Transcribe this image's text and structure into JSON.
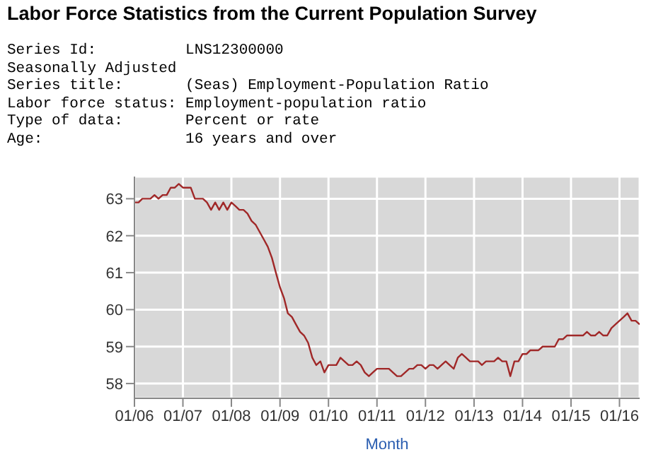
{
  "chart_data": {
    "type": "line",
    "title": "Labor Force Statistics from the Current Population Survey",
    "annotations": [
      "Series Id:          LNS12300000",
      "Seasonally Adjusted",
      "Series title:       (Seas) Employment-Population Ratio",
      "Labor force status: Employment-population ratio",
      "Type of data:       Percent or rate",
      "Age:                16 years and over"
    ],
    "xlabel": "Month",
    "x": [
      "2006-01",
      "2006-02",
      "2006-03",
      "2006-04",
      "2006-05",
      "2006-06",
      "2006-07",
      "2006-08",
      "2006-09",
      "2006-10",
      "2006-11",
      "2006-12",
      "2007-01",
      "2007-02",
      "2007-03",
      "2007-04",
      "2007-05",
      "2007-06",
      "2007-07",
      "2007-08",
      "2007-09",
      "2007-10",
      "2007-11",
      "2007-12",
      "2008-01",
      "2008-02",
      "2008-03",
      "2008-04",
      "2008-05",
      "2008-06",
      "2008-07",
      "2008-08",
      "2008-09",
      "2008-10",
      "2008-11",
      "2008-12",
      "2009-01",
      "2009-02",
      "2009-03",
      "2009-04",
      "2009-05",
      "2009-06",
      "2009-07",
      "2009-08",
      "2009-09",
      "2009-10",
      "2009-11",
      "2009-12",
      "2010-01",
      "2010-02",
      "2010-03",
      "2010-04",
      "2010-05",
      "2010-06",
      "2010-07",
      "2010-08",
      "2010-09",
      "2010-10",
      "2010-11",
      "2010-12",
      "2011-01",
      "2011-02",
      "2011-03",
      "2011-04",
      "2011-05",
      "2011-06",
      "2011-07",
      "2011-08",
      "2011-09",
      "2011-10",
      "2011-11",
      "2011-12",
      "2012-01",
      "2012-02",
      "2012-03",
      "2012-04",
      "2012-05",
      "2012-06",
      "2012-07",
      "2012-08",
      "2012-09",
      "2012-10",
      "2012-11",
      "2012-12",
      "2013-01",
      "2013-02",
      "2013-03",
      "2013-04",
      "2013-05",
      "2013-06",
      "2013-07",
      "2013-08",
      "2013-09",
      "2013-10",
      "2013-11",
      "2013-12",
      "2014-01",
      "2014-02",
      "2014-03",
      "2014-04",
      "2014-05",
      "2014-06",
      "2014-07",
      "2014-08",
      "2014-09",
      "2014-10",
      "2014-11",
      "2014-12",
      "2015-01",
      "2015-02",
      "2015-03",
      "2015-04",
      "2015-05",
      "2015-06",
      "2015-07",
      "2015-08",
      "2015-09",
      "2015-10",
      "2015-11",
      "2015-12",
      "2016-01",
      "2016-02",
      "2016-03",
      "2016-04",
      "2016-05",
      "2016-06"
    ],
    "series": [
      {
        "color": "#a02828",
        "values": [
          62.9,
          62.9,
          63.0,
          63.0,
          63.0,
          63.1,
          63.0,
          63.1,
          63.1,
          63.3,
          63.3,
          63.4,
          63.3,
          63.3,
          63.3,
          63.0,
          63.0,
          63.0,
          62.9,
          62.7,
          62.9,
          62.7,
          62.9,
          62.7,
          62.9,
          62.8,
          62.7,
          62.7,
          62.6,
          62.4,
          62.3,
          62.1,
          61.9,
          61.7,
          61.4,
          61.0,
          60.6,
          60.3,
          59.9,
          59.8,
          59.6,
          59.4,
          59.3,
          59.1,
          58.7,
          58.5,
          58.6,
          58.3,
          58.5,
          58.5,
          58.5,
          58.7,
          58.6,
          58.5,
          58.5,
          58.6,
          58.5,
          58.3,
          58.2,
          58.3,
          58.4,
          58.4,
          58.4,
          58.4,
          58.3,
          58.2,
          58.2,
          58.3,
          58.4,
          58.4,
          58.5,
          58.5,
          58.4,
          58.5,
          58.5,
          58.4,
          58.5,
          58.6,
          58.5,
          58.4,
          58.7,
          58.8,
          58.7,
          58.6,
          58.6,
          58.6,
          58.5,
          58.6,
          58.6,
          58.6,
          58.7,
          58.6,
          58.6,
          58.2,
          58.6,
          58.6,
          58.8,
          58.8,
          58.9,
          58.9,
          58.9,
          59.0,
          59.0,
          59.0,
          59.0,
          59.2,
          59.2,
          59.3,
          59.3,
          59.3,
          59.3,
          59.3,
          59.4,
          59.3,
          59.3,
          59.4,
          59.3,
          59.3,
          59.5,
          59.6,
          59.7,
          59.8,
          59.9,
          59.7,
          59.7,
          59.6
        ]
      }
    ],
    "xlim": [
      "2006-01",
      "2016-06"
    ],
    "xticks": [
      {
        "value": "2006-01",
        "label": "01/06"
      },
      {
        "value": "2007-01",
        "label": "01/07"
      },
      {
        "value": "2008-01",
        "label": "01/08"
      },
      {
        "value": "2009-01",
        "label": "01/09"
      },
      {
        "value": "2010-01",
        "label": "01/10"
      },
      {
        "value": "2011-01",
        "label": "01/11"
      },
      {
        "value": "2012-01",
        "label": "01/12"
      },
      {
        "value": "2013-01",
        "label": "01/13"
      },
      {
        "value": "2014-01",
        "label": "01/14"
      },
      {
        "value": "2015-01",
        "label": "01/15"
      },
      {
        "value": "2016-01",
        "label": "01/16"
      }
    ],
    "ylim": [
      57.6,
      63.6
    ],
    "yticks": [
      58,
      59,
      60,
      61,
      62,
      63
    ],
    "grid": true,
    "legend": false,
    "marker": "none",
    "line_style": "solid"
  }
}
